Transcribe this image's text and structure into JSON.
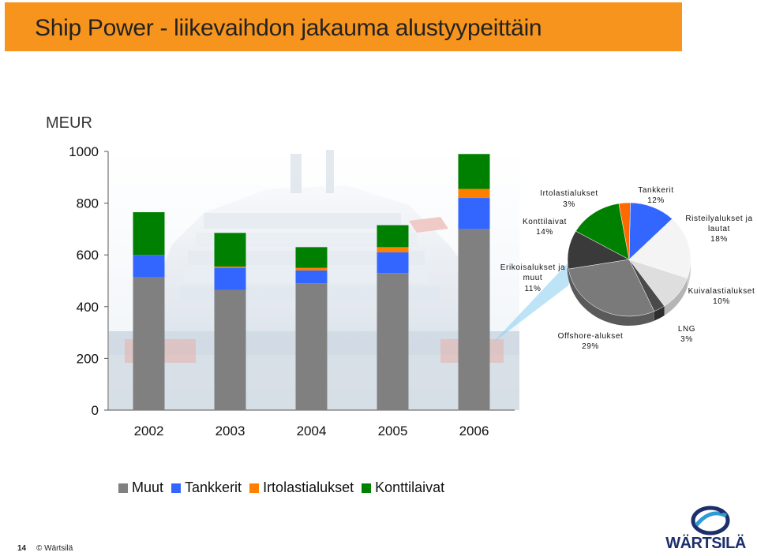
{
  "title": "Ship Power - liikevaihdon jakauma alustyypeittäin",
  "unit": "MEUR",
  "colors": {
    "title_bar": "#f7941d",
    "Muut": "#808080",
    "Tankkerit": "#3366ff",
    "Irtolastialukset": "#ff7f00",
    "Konttilaivat": "#008000"
  },
  "chart_data": [
    {
      "type": "bar",
      "stacked": true,
      "categories": [
        "2002",
        "2003",
        "2004",
        "2005",
        "2006"
      ],
      "yticks": [
        "0",
        "200",
        "400",
        "600",
        "800",
        "1000"
      ],
      "ylim": [
        0,
        1000
      ],
      "grid": false,
      "legend_position": "bottom",
      "series": [
        {
          "name": "Muut",
          "values": [
            513,
            465,
            490,
            530,
            700
          ]
        },
        {
          "name": "Tankkerit",
          "values": [
            87,
            85,
            50,
            80,
            120
          ]
        },
        {
          "name": "Irtolastialukset",
          "values": [
            0,
            5,
            10,
            20,
            35
          ]
        },
        {
          "name": "Konttilaivat",
          "values": [
            165,
            130,
            80,
            85,
            135
          ]
        }
      ]
    },
    {
      "type": "pie",
      "slices": [
        {
          "label": "Tankkerit",
          "pct_label": "12%",
          "value": 12
        },
        {
          "label": "Risteilyalukset ja lautat",
          "pct_label": "18%",
          "value": 18
        },
        {
          "label": "Kuivalastialukset",
          "pct_label": "10%",
          "value": 10
        },
        {
          "label": "LNG",
          "pct_label": "3%",
          "value": 3
        },
        {
          "label": "Offshore-alukset",
          "pct_label": "29%",
          "value": 29
        },
        {
          "label": "Erikoisalukset ja muut",
          "pct_label": "11%",
          "value": 11
        },
        {
          "label": "Konttilaivat",
          "pct_label": "14%",
          "value": 14
        },
        {
          "label": "Irtolastialukset",
          "pct_label": "3%",
          "value": 3
        }
      ]
    }
  ],
  "legend": [
    "Muut",
    "Tankkerit",
    "Irtolastialukset",
    "Konttilaivat"
  ],
  "footer": {
    "page": "14",
    "copyright": "© Wärtsilä"
  },
  "logo": {
    "text": "WÄRTSILÄ"
  }
}
